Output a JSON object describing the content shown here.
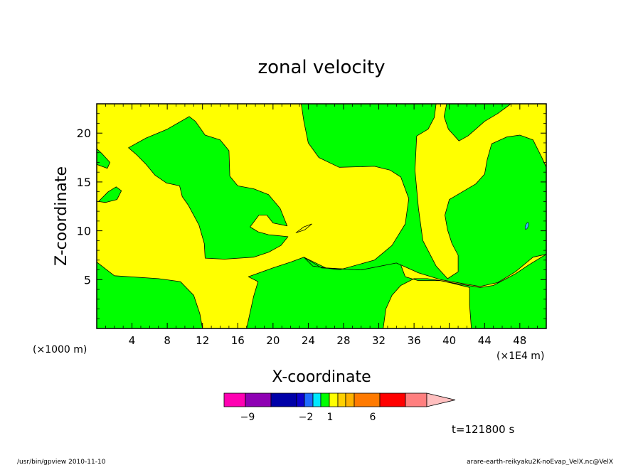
{
  "chart_data": {
    "type": "heatmap",
    "title": "zonal velocity",
    "xlabel": "X-coordinate",
    "ylabel": "Z-coordinate",
    "x_unit_left": "(×1000 m)",
    "x_unit_right": "(×1E4 m)",
    "xlim": [
      0,
      51
    ],
    "ylim": [
      0,
      23
    ],
    "x_ticks": [
      4,
      8,
      12,
      16,
      20,
      24,
      28,
      32,
      36,
      40,
      44,
      48
    ],
    "y_ticks": [
      5,
      10,
      15,
      20
    ],
    "colors": {
      "positive_low": "#00ff00",
      "negative_low": "#ffff00",
      "small_contour": "#3bb6ff"
    },
    "regions": [
      {
        "level": "green",
        "polygon": [
          [
            0,
            6.8
          ],
          [
            2,
            5.4
          ],
          [
            7,
            5.1
          ],
          [
            9.5,
            4.8
          ],
          [
            11,
            3.4
          ],
          [
            11.7,
            1.5
          ],
          [
            12,
            0
          ],
          [
            0,
            0
          ]
        ]
      },
      {
        "level": "green",
        "polygon": [
          [
            17,
            0
          ],
          [
            17.8,
            3.3
          ],
          [
            18.3,
            4.8
          ],
          [
            17.2,
            5.3
          ],
          [
            20,
            6.2
          ],
          [
            22,
            6.8
          ],
          [
            23.5,
            7.3
          ],
          [
            26,
            6.2
          ],
          [
            30,
            6
          ],
          [
            34,
            7
          ],
          [
            34.5,
            6.5
          ],
          [
            35,
            5.3
          ],
          [
            36.5,
            4.9
          ],
          [
            39,
            4.9
          ],
          [
            41.5,
            4.5
          ],
          [
            43.5,
            4.2
          ],
          [
            45,
            4.4
          ],
          [
            47.5,
            5.6
          ],
          [
            49,
            6.5
          ],
          [
            51,
            7.6
          ],
          [
            51,
            0
          ],
          [
            42.5,
            0
          ],
          [
            42.3,
            2.4
          ],
          [
            42.3,
            4.2
          ],
          [
            40.5,
            4.6
          ],
          [
            39,
            4.9
          ],
          [
            37.5,
            5.1
          ],
          [
            36,
            5.1
          ],
          [
            34.5,
            4.4
          ],
          [
            33.5,
            3.4
          ],
          [
            32.8,
            2
          ],
          [
            32.5,
            0
          ]
        ]
      },
      {
        "level": "green",
        "polygon": [
          [
            3.6,
            18.5
          ],
          [
            5.6,
            19.5
          ],
          [
            8,
            20.4
          ],
          [
            10.5,
            21.7
          ],
          [
            11.2,
            21.2
          ],
          [
            12.3,
            19.8
          ],
          [
            14,
            19.3
          ],
          [
            15,
            18.2
          ],
          [
            15.1,
            15.6
          ],
          [
            16,
            14.6
          ],
          [
            17.8,
            14.3
          ],
          [
            19.5,
            13.7
          ],
          [
            20.8,
            12.3
          ],
          [
            21.6,
            10.5
          ],
          [
            20,
            10.8
          ],
          [
            19.3,
            11.6
          ],
          [
            18.4,
            11.6
          ],
          [
            17.4,
            10.4
          ],
          [
            18.3,
            9.9
          ],
          [
            19.5,
            9.6
          ],
          [
            21.7,
            9.4
          ],
          [
            20.9,
            8.5
          ],
          [
            19.5,
            7.8
          ],
          [
            17.8,
            7.3
          ],
          [
            14.5,
            7.1
          ],
          [
            12.3,
            7.2
          ],
          [
            12.2,
            8.7
          ],
          [
            11.6,
            10.6
          ],
          [
            10.4,
            12.6
          ],
          [
            9.7,
            13.5
          ],
          [
            9.4,
            14.6
          ],
          [
            7.9,
            14.9
          ],
          [
            6.6,
            15.7
          ],
          [
            5.6,
            16.8
          ],
          [
            4.5,
            17.8
          ]
        ]
      },
      {
        "level": "green",
        "polygon": [
          [
            23.2,
            23
          ],
          [
            23.5,
            21.2
          ],
          [
            24,
            19
          ],
          [
            25.2,
            17.5
          ],
          [
            27.5,
            16.5
          ],
          [
            31.5,
            16.6
          ],
          [
            33.3,
            16.2
          ],
          [
            34.5,
            15.5
          ],
          [
            35.4,
            13.3
          ],
          [
            35,
            10.7
          ],
          [
            33.5,
            8.5
          ],
          [
            31.5,
            7
          ],
          [
            27.5,
            6
          ],
          [
            24.5,
            6.4
          ],
          [
            23.5,
            7.3
          ],
          [
            25.5,
            6.2
          ],
          [
            30,
            6
          ],
          [
            34,
            6.7
          ],
          [
            36.5,
            5.7
          ],
          [
            39,
            5
          ],
          [
            41.5,
            4.6
          ],
          [
            42.8,
            4.4
          ],
          [
            43.5,
            4.3
          ],
          [
            45.5,
            4.7
          ],
          [
            47.5,
            5.8
          ],
          [
            49.5,
            7.3
          ],
          [
            51,
            7.6
          ],
          [
            51,
            16.5
          ],
          [
            50.5,
            17.5
          ],
          [
            49.5,
            19.3
          ],
          [
            48,
            19.8
          ],
          [
            46.5,
            19.6
          ],
          [
            44.8,
            18.9
          ],
          [
            44.3,
            17.3
          ],
          [
            44,
            15.8
          ],
          [
            43,
            14.8
          ],
          [
            40,
            13.2
          ],
          [
            39.5,
            11.6
          ],
          [
            39.8,
            10.1
          ],
          [
            40.3,
            8.7
          ],
          [
            41,
            7.5
          ],
          [
            41,
            5.8
          ],
          [
            39.8,
            5.1
          ],
          [
            38.5,
            6.4
          ],
          [
            37,
            9
          ],
          [
            36.5,
            12.3
          ],
          [
            36.1,
            16.2
          ],
          [
            36.3,
            19.7
          ],
          [
            37.6,
            20.4
          ],
          [
            38.3,
            21.6
          ],
          [
            38.5,
            23
          ]
        ]
      },
      {
        "level": "green",
        "polygon": [
          [
            39.7,
            23
          ],
          [
            39.4,
            21.7
          ],
          [
            39.9,
            20.4
          ],
          [
            41.1,
            19.2
          ],
          [
            42.1,
            19.7
          ],
          [
            43,
            20.4
          ],
          [
            44,
            21.2
          ],
          [
            45.5,
            22
          ],
          [
            47,
            23
          ]
        ]
      },
      {
        "level": "green",
        "polygon": [
          [
            0,
            18.4
          ],
          [
            0.6,
            17.9
          ],
          [
            1.5,
            17
          ],
          [
            1.2,
            16.4
          ],
          [
            0,
            16.8
          ]
        ]
      },
      {
        "level": "green",
        "polygon": [
          [
            0.2,
            13
          ],
          [
            1.3,
            14
          ],
          [
            2.2,
            14.5
          ],
          [
            2.8,
            14.1
          ],
          [
            2.3,
            13.2
          ],
          [
            1,
            12.9
          ]
        ]
      },
      {
        "level": "yellow",
        "polygon": [
          [
            22.6,
            9.8
          ],
          [
            23.5,
            10.4
          ],
          [
            24.4,
            10.7
          ],
          [
            23.6,
            10.1
          ]
        ]
      }
    ],
    "colorbar": {
      "levels": [
        -9,
        -2,
        1,
        6
      ],
      "labels": [
        "−9",
        "−2",
        "1",
        "6"
      ],
      "colors": [
        "#ff00b2",
        "#8e00b3",
        "#0000a8",
        "#0c00cc",
        "#1f6cff",
        "#00e8ff",
        "#00ff00",
        "#ffff00",
        "#ffd000",
        "#ffb200",
        "#ff7a00",
        "#ff0000",
        "#ff7f7f",
        "#ffbfbf"
      ]
    },
    "time_label": "t=121800 s"
  },
  "footer": {
    "left": "/usr/bin/gpview  2010-11-10",
    "right": "arare-earth-reikyaku2K-noEvap_VelX.nc@VelX"
  }
}
